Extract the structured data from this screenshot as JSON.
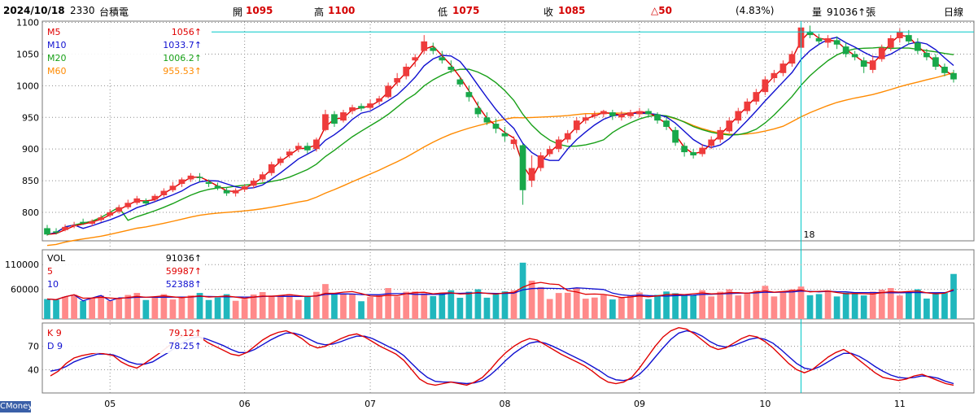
{
  "header": {
    "date": "2024/10/18",
    "code": "2330",
    "name": "台積電",
    "open_label": "開",
    "open": "1095",
    "high_label": "高",
    "high": "1100",
    "low_label": "低",
    "low": "1075",
    "close_label": "收",
    "close": "1085",
    "change": "△50",
    "change_pct": "(4.83%)",
    "vol_label": "量",
    "volume": "91036↑張",
    "period": "日線"
  },
  "brand": "CMoney",
  "colors": {
    "up": "#ee3b3b",
    "down": "#18a84a",
    "vol_up": "#ff8a8a",
    "vol_down": "#20b7bd",
    "ma5": "#e00000",
    "ma10": "#1010d0",
    "ma20": "#18a018",
    "ma60": "#ff8a00",
    "grid": "#8c8c8c",
    "crosshair": "#00c8c8"
  },
  "chart_data": [
    {
      "type": "candlestick",
      "title": "價格",
      "ylim": [
        755,
        1102
      ],
      "yticks": [
        "1100",
        "1050",
        "1000",
        "950",
        "900",
        "850",
        "800"
      ],
      "legend": [
        {
          "name": "M5",
          "value": "1056↑"
        },
        {
          "name": "M10",
          "value": "1033.7↑"
        },
        {
          "name": "M20",
          "value": "1006.2↑"
        },
        {
          "name": "M60",
          "value": "955.53↑"
        }
      ],
      "crosshair_price": 1085,
      "crosshair_label": "18",
      "x_months": [
        "05",
        "06",
        "07",
        "08",
        "09",
        "10",
        "11"
      ],
      "candles": [
        [
          775,
          765,
          780,
          763
        ],
        [
          770,
          768,
          775,
          765
        ],
        [
          772,
          777,
          781,
          770
        ],
        [
          778,
          780,
          785,
          775
        ],
        [
          785,
          783,
          790,
          780
        ],
        [
          782,
          786,
          789,
          778
        ],
        [
          788,
          792,
          796,
          785
        ],
        [
          795,
          800,
          805,
          792
        ],
        [
          801,
          808,
          812,
          798
        ],
        [
          808,
          815,
          820,
          805
        ],
        [
          815,
          822,
          826,
          812
        ],
        [
          818,
          814,
          822,
          810
        ],
        [
          820,
          826,
          829,
          817
        ],
        [
          827,
          834,
          838,
          824
        ],
        [
          835,
          842,
          848,
          832
        ],
        [
          845,
          852,
          855,
          840
        ],
        [
          852,
          858,
          862,
          848
        ],
        [
          856,
          854,
          862,
          848
        ],
        [
          848,
          845,
          852,
          840
        ],
        [
          842,
          838,
          847,
          835
        ],
        [
          835,
          830,
          840,
          826
        ],
        [
          830,
          835,
          838,
          825
        ],
        [
          836,
          841,
          844,
          832
        ],
        [
          842,
          850,
          854,
          838
        ],
        [
          852,
          860,
          864,
          848
        ],
        [
          862,
          876,
          880,
          858
        ],
        [
          878,
          885,
          888,
          874
        ],
        [
          890,
          896,
          900,
          886
        ],
        [
          900,
          905,
          910,
          895
        ],
        [
          905,
          898,
          910,
          893
        ],
        [
          900,
          915,
          918,
          896
        ],
        [
          930,
          955,
          962,
          928
        ],
        [
          955,
          940,
          960,
          935
        ],
        [
          945,
          958,
          962,
          942
        ],
        [
          960,
          966,
          970,
          955
        ],
        [
          968,
          964,
          972,
          960
        ],
        [
          965,
          972,
          978,
          962
        ],
        [
          975,
          980,
          984,
          970
        ],
        [
          982,
          1000,
          1005,
          980
        ],
        [
          1005,
          1012,
          1020,
          1000
        ],
        [
          1015,
          1030,
          1035,
          1010
        ],
        [
          1040,
          1045,
          1050,
          1030
        ],
        [
          1055,
          1070,
          1080,
          1050
        ],
        [
          1060,
          1055,
          1068,
          1050
        ],
        [
          1045,
          1040,
          1055,
          1035
        ],
        [
          1030,
          1025,
          1040,
          1020
        ],
        [
          1010,
          1002,
          1015,
          998
        ],
        [
          990,
          982,
          1000,
          975
        ],
        [
          965,
          955,
          975,
          950
        ],
        [
          950,
          942,
          958,
          938
        ],
        [
          940,
          932,
          948,
          925
        ],
        [
          925,
          920,
          935,
          912
        ],
        [
          908,
          915,
          920,
          900
        ],
        [
          906,
          835,
          908,
          812
        ],
        [
          850,
          870,
          890,
          840
        ],
        [
          870,
          890,
          895,
          865
        ],
        [
          892,
          900,
          905,
          888
        ],
        [
          900,
          915,
          920,
          895
        ],
        [
          915,
          925,
          930,
          910
        ],
        [
          930,
          945,
          950,
          925
        ],
        [
          945,
          950,
          955,
          940
        ],
        [
          952,
          955,
          960,
          948
        ],
        [
          955,
          960,
          962,
          950
        ],
        [
          958,
          952,
          962,
          946
        ],
        [
          950,
          955,
          960,
          945
        ],
        [
          952,
          958,
          962,
          948
        ],
        [
          955,
          960,
          965,
          950
        ],
        [
          960,
          955,
          964,
          950
        ],
        [
          955,
          945,
          958,
          940
        ],
        [
          945,
          935,
          950,
          930
        ],
        [
          930,
          910,
          935,
          905
        ],
        [
          905,
          895,
          910,
          888
        ],
        [
          895,
          890,
          900,
          885
        ],
        [
          892,
          902,
          908,
          888
        ],
        [
          905,
          915,
          920,
          900
        ],
        [
          915,
          930,
          935,
          910
        ],
        [
          928,
          945,
          950,
          925
        ],
        [
          945,
          960,
          965,
          940
        ],
        [
          960,
          975,
          980,
          955
        ],
        [
          975,
          990,
          995,
          970
        ],
        [
          990,
          1010,
          1015,
          985
        ],
        [
          1012,
          1020,
          1025,
          1005
        ],
        [
          1020,
          1035,
          1040,
          1015
        ],
        [
          1035,
          1050,
          1055,
          1030
        ],
        [
          1060,
          1092,
          1100,
          1055
        ],
        [
          1085,
          1080,
          1095,
          1075
        ],
        [
          1075,
          1070,
          1082,
          1065
        ],
        [
          1068,
          1075,
          1080,
          1060
        ],
        [
          1072,
          1065,
          1078,
          1058
        ],
        [
          1062,
          1050,
          1068,
          1045
        ],
        [
          1050,
          1045,
          1055,
          1040
        ],
        [
          1040,
          1030,
          1045,
          1020
        ],
        [
          1025,
          1040,
          1048,
          1020
        ],
        [
          1042,
          1060,
          1065,
          1038
        ],
        [
          1060,
          1075,
          1080,
          1055
        ],
        [
          1075,
          1085,
          1090,
          1068
        ],
        [
          1080,
          1070,
          1088,
          1065
        ],
        [
          1068,
          1055,
          1075,
          1050
        ],
        [
          1052,
          1045,
          1058,
          1040
        ],
        [
          1045,
          1030,
          1050,
          1025
        ],
        [
          1030,
          1020,
          1035,
          1015
        ],
        [
          1020,
          1010,
          1025,
          1005
        ]
      ],
      "ma5_anchor": 1056,
      "ma10_anchor": 1033.7,
      "ma20_anchor": 1006.2,
      "ma60_anchor": 955.53
    },
    {
      "type": "bar",
      "title": "成交量",
      "ylim": [
        0,
        140000
      ],
      "yticks": [
        "110000",
        "60000"
      ],
      "legend": [
        {
          "name": "VOL",
          "value": "91036↑"
        },
        {
          "name": "5",
          "value": "59987↑"
        },
        {
          "name": "10",
          "value": "52388↑"
        }
      ]
    },
    {
      "type": "line",
      "title": "KD",
      "ylim": [
        10,
        100
      ],
      "yticks": [
        "70",
        "40"
      ],
      "legend": [
        {
          "name": "K 9",
          "value": "79.12↑"
        },
        {
          "name": "D 9",
          "value": "78.25↑"
        }
      ],
      "k": [
        32,
        38,
        48,
        55,
        58,
        60,
        62,
        60,
        58,
        50,
        45,
        42,
        48,
        55,
        62,
        70,
        78,
        84,
        86,
        82,
        75,
        70,
        65,
        60,
        58,
        62,
        70,
        78,
        84,
        88,
        90,
        86,
        80,
        72,
        68,
        70,
        75,
        80,
        84,
        86,
        82,
        76,
        70,
        65,
        60,
        52,
        40,
        28,
        22,
        20,
        22,
        24,
        22,
        20,
        24,
        30,
        40,
        52,
        62,
        70,
        76,
        80,
        78,
        72,
        66,
        60,
        55,
        50,
        45,
        38,
        30,
        24,
        22,
        24,
        30,
        42,
        56,
        70,
        82,
        90,
        94,
        92,
        86,
        78,
        70,
        66,
        68,
        74,
        80,
        84,
        82,
        76,
        68,
        58,
        48,
        40,
        36,
        40,
        48,
        56,
        62,
        66,
        60,
        52,
        44,
        36,
        30,
        28,
        26,
        28,
        32,
        34,
        30,
        26,
        22,
        20
      ],
      "d": [
        38,
        40,
        44,
        50,
        54,
        57,
        60,
        60,
        59,
        55,
        50,
        47,
        47,
        50,
        56,
        62,
        69,
        76,
        81,
        82,
        79,
        75,
        71,
        66,
        62,
        62,
        66,
        72,
        78,
        83,
        87,
        87,
        84,
        79,
        74,
        72,
        73,
        76,
        80,
        83,
        83,
        80,
        75,
        70,
        65,
        58,
        48,
        38,
        30,
        25,
        24,
        24,
        23,
        22,
        23,
        26,
        33,
        42,
        52,
        61,
        68,
        74,
        76,
        74,
        70,
        65,
        60,
        55,
        50,
        44,
        38,
        31,
        27,
        26,
        28,
        34,
        44,
        56,
        68,
        79,
        87,
        90,
        88,
        83,
        76,
        71,
        69,
        71,
        75,
        79,
        81,
        79,
        74,
        66,
        57,
        48,
        42,
        40,
        44,
        50,
        56,
        61,
        61,
        57,
        51,
        44,
        38,
        33,
        30,
        29,
        30,
        32,
        31,
        29,
        25,
        22
      ]
    }
  ]
}
